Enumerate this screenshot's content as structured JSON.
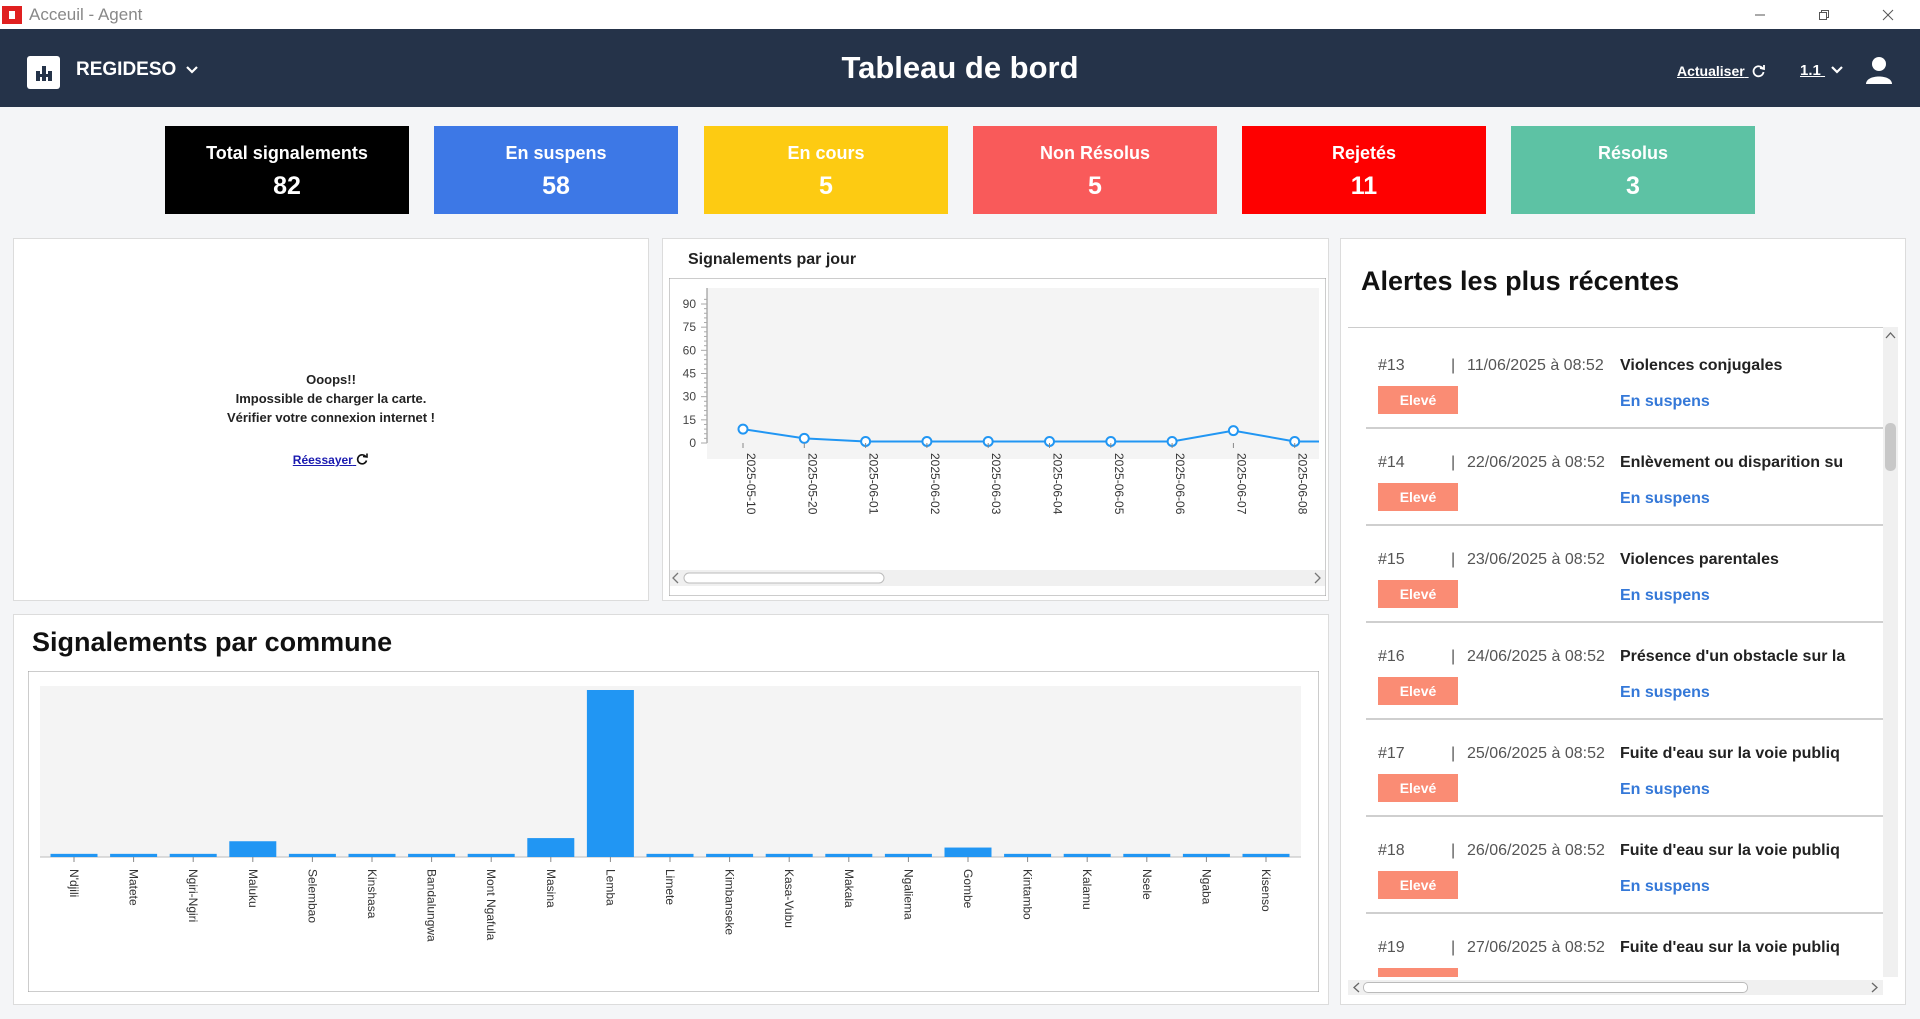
{
  "window": {
    "title": "Acceuil - Agent"
  },
  "header": {
    "org": "REGIDESO",
    "title": "Tableau de bord",
    "refresh_label": "Actualiser",
    "version": "1.1"
  },
  "stats": [
    {
      "label": "Total signalements",
      "value": "82",
      "color": "#000000",
      "text_color": "#ffffff"
    },
    {
      "label": "En suspens",
      "value": "58",
      "color": "#3d78e6",
      "text_color": "#ffffff"
    },
    {
      "label": "En cours",
      "value": "5",
      "color": "#fdcb12",
      "text_color": "#ffffff"
    },
    {
      "label": "Non Résolus",
      "value": "5",
      "color": "#f95a5a",
      "text_color": "#ffffff"
    },
    {
      "label": "Rejetés",
      "value": "11",
      "color": "#fe0000",
      "text_color": "#ffffff"
    },
    {
      "label": "Résolus",
      "value": "3",
      "color": "#5dc2a4",
      "text_color": "#ffffff"
    }
  ],
  "map": {
    "error_line1": "Ooops!!",
    "error_line2": "Impossible de charger la carte.",
    "error_line3": "Vérifier votre connexion internet !",
    "retry": "Réessayer"
  },
  "alerts": {
    "title": "Alertes les plus récentes",
    "items": [
      {
        "id": "#13",
        "date": "11/06/2025 à 08:52",
        "title": "Violences conjugales",
        "level": "Elevé",
        "status": "En suspens"
      },
      {
        "id": "#14",
        "date": "22/06/2025 à 08:52",
        "title": "Enlèvement ou disparition su",
        "level": "Elevé",
        "status": "En suspens"
      },
      {
        "id": "#15",
        "date": "23/06/2025 à 08:52",
        "title": "Violences parentales",
        "level": "Elevé",
        "status": "En suspens"
      },
      {
        "id": "#16",
        "date": "24/06/2025 à 08:52",
        "title": "Présence d'un obstacle sur la",
        "level": "Elevé",
        "status": "En suspens"
      },
      {
        "id": "#17",
        "date": "25/06/2025 à 08:52",
        "title": "Fuite d'eau sur la voie publiq",
        "level": "Elevé",
        "status": "En suspens"
      },
      {
        "id": "#18",
        "date": "26/06/2025 à 08:52",
        "title": "Fuite d'eau sur la voie publiq",
        "level": "Elevé",
        "status": "En suspens"
      },
      {
        "id": "#19",
        "date": "27/06/2025 à 08:52",
        "title": "Fuite d'eau sur la voie publiq",
        "level": "Elevé",
        "status": "En suspens"
      }
    ]
  },
  "chart_data": [
    {
      "type": "line",
      "title": "Signalements par jour",
      "x": [
        "2025-05-10",
        "2025-05-20",
        "2025-06-01",
        "2025-06-02",
        "2025-06-03",
        "2025-06-04",
        "2025-06-05",
        "2025-06-06",
        "2025-06-07",
        "2025-06-08"
      ],
      "values": [
        9,
        3,
        1,
        1,
        1,
        1,
        1,
        1,
        8,
        1
      ],
      "yticks": [
        0,
        15,
        30,
        45,
        60,
        75,
        90
      ],
      "ylim": [
        0,
        100
      ],
      "color": "#2196f3",
      "grid": false
    },
    {
      "type": "bar",
      "title": "Signalements par commune",
      "categories": [
        "N'djili",
        "Matete",
        "Ngiri-Ngiri",
        "Maluku",
        "Selembao",
        "Kinshasa",
        "Bandalungwa",
        "Mont Ngafula",
        "Masina",
        "Lemba",
        "Limete",
        "Kimbanseke",
        "Kasa-Vubu",
        "Makala",
        "Ngaliema",
        "Gombe",
        "Kintambo",
        "Kalamu",
        "Nsele",
        "Ngaba",
        "Kisenso"
      ],
      "values": [
        1,
        1,
        1,
        5,
        1,
        1,
        1,
        1,
        6,
        53,
        1,
        1,
        1,
        1,
        1,
        3,
        1,
        1,
        1,
        1,
        1
      ],
      "ylim": [
        0,
        60
      ],
      "color": "#2196f3",
      "grid": false
    }
  ]
}
